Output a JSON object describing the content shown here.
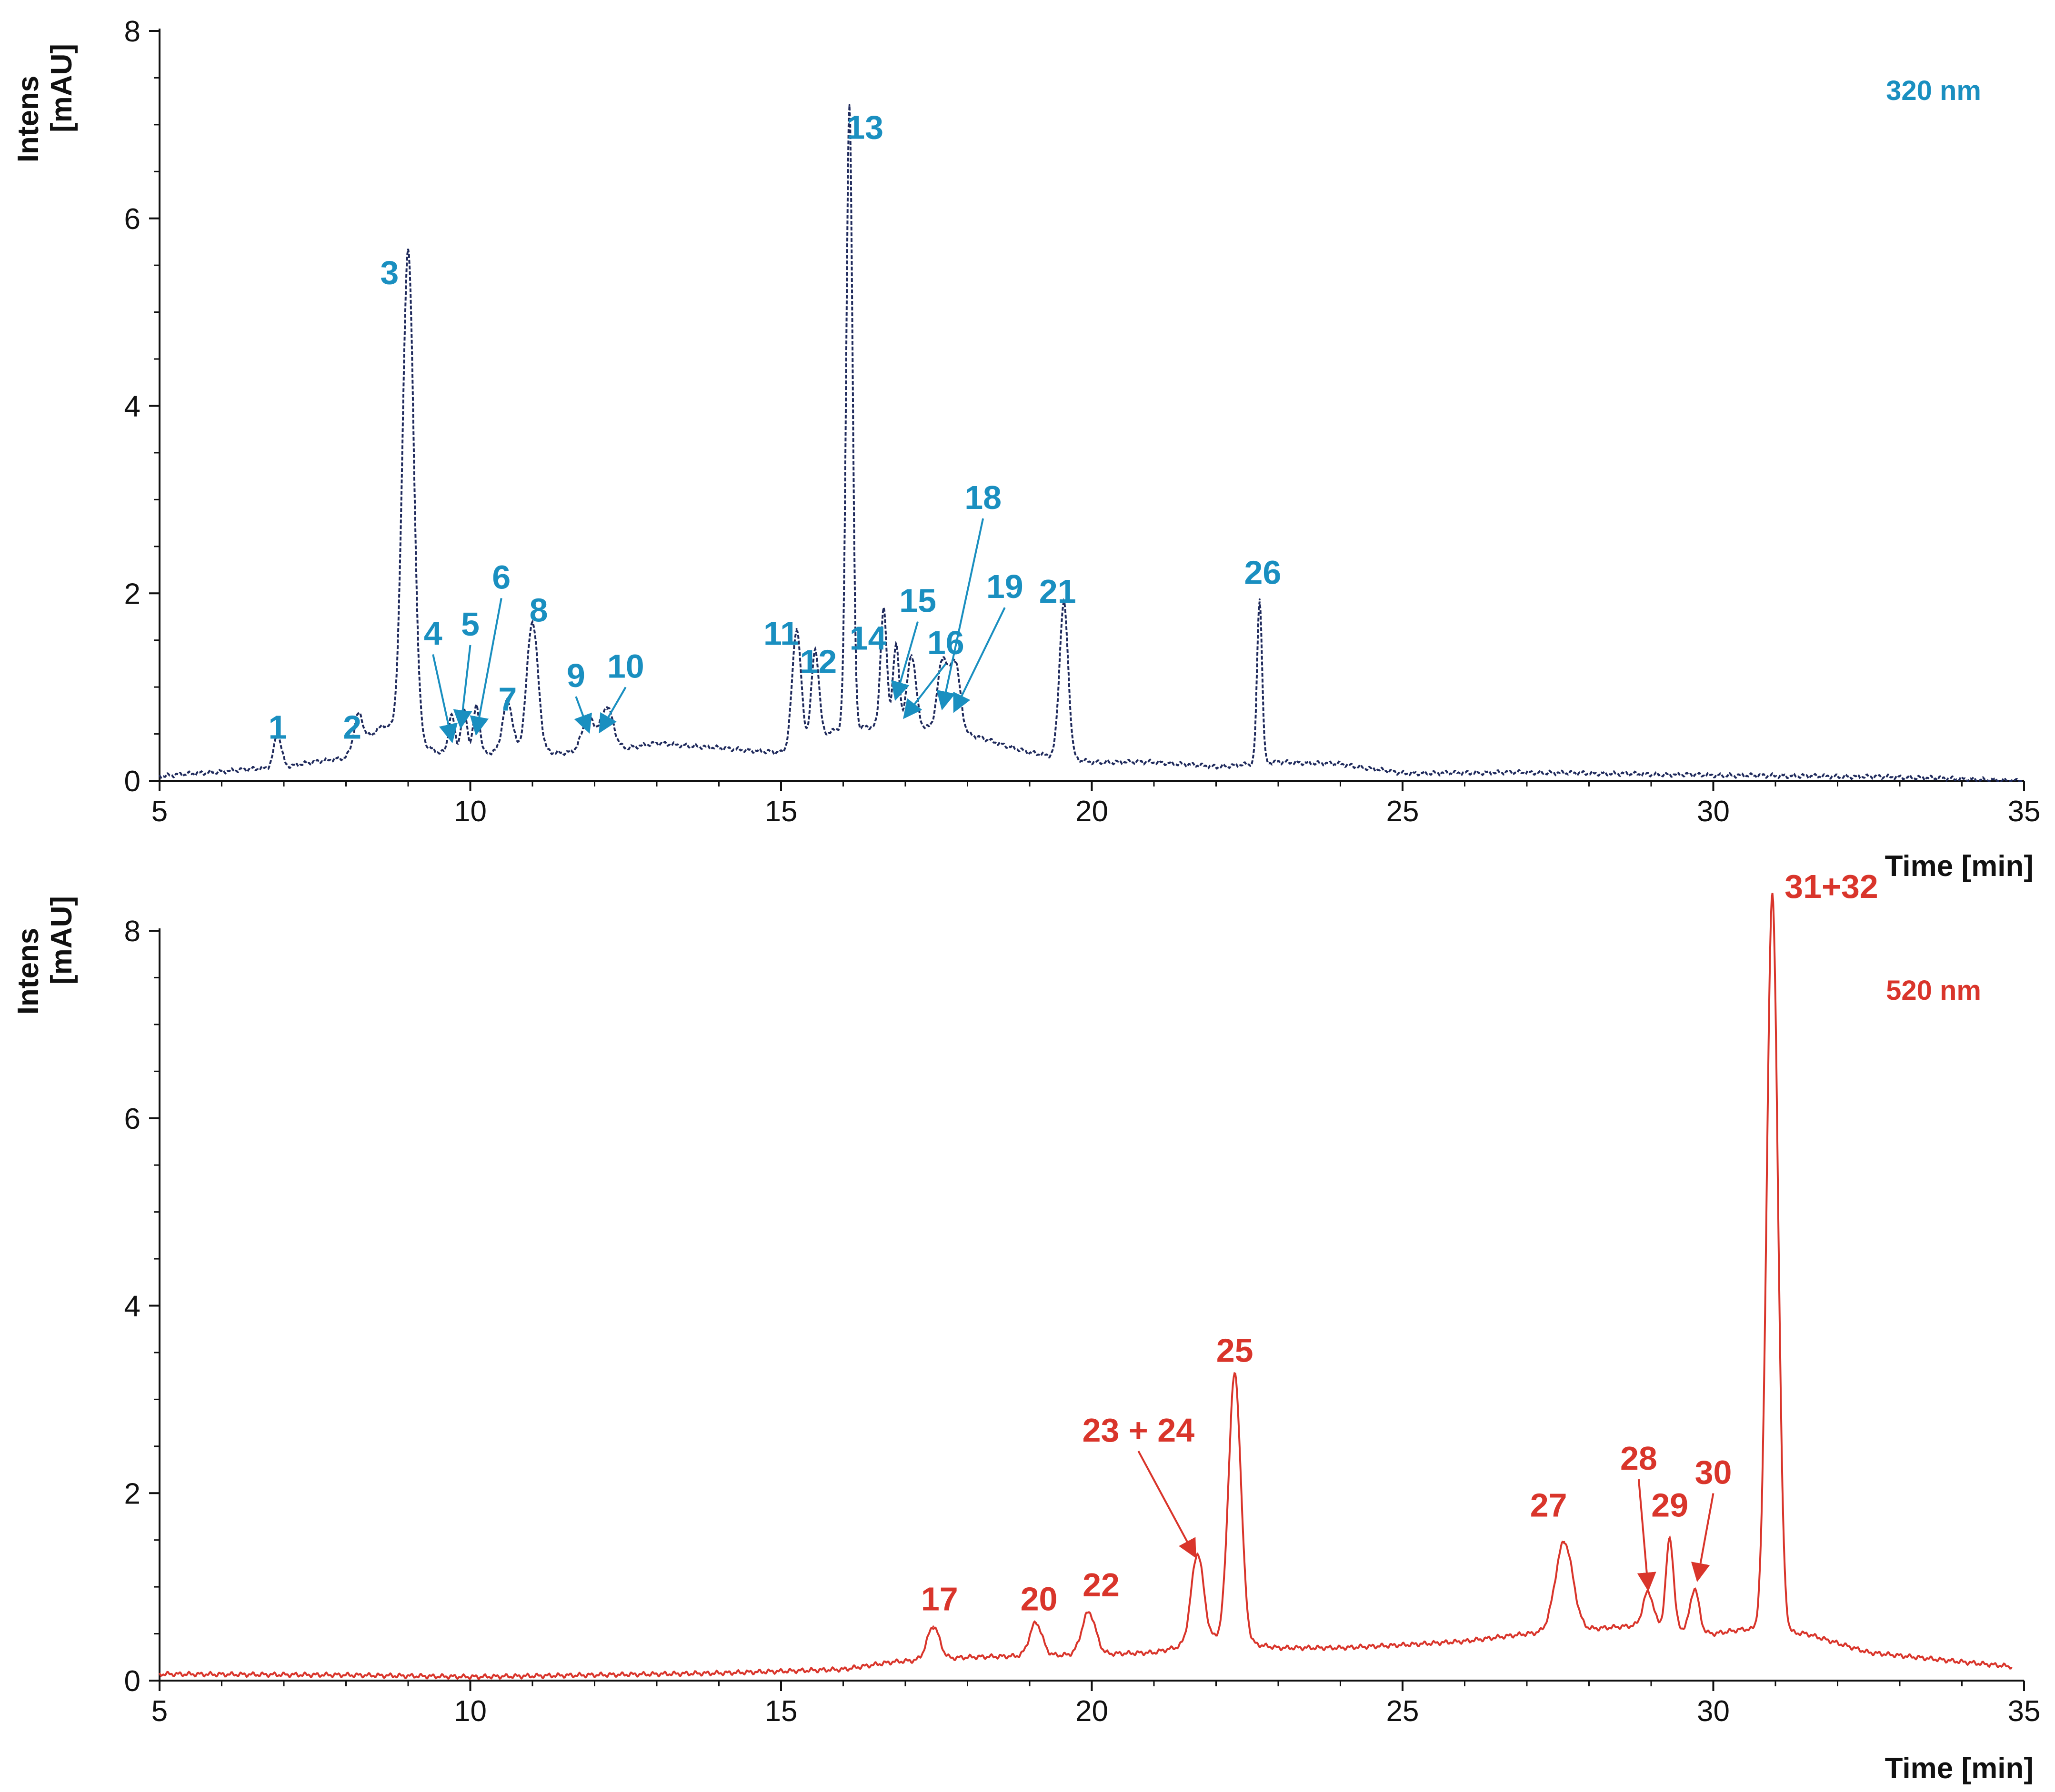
{
  "chart_data": [
    {
      "type": "line",
      "wavelength_label": "320 nm",
      "ylabel_line1": "Intens",
      "ylabel_line2": "[mAU]",
      "xlabel": "Time [min]",
      "xlim": [
        5,
        35
      ],
      "ylim": [
        0,
        8
      ],
      "xticks": [
        5,
        10,
        15,
        20,
        25,
        30,
        35
      ],
      "yticks": [
        0,
        2,
        4,
        6,
        8
      ],
      "color": "#1f2a5c",
      "label_color": "#1a8fc0",
      "line_style": "dashed",
      "baseline": [
        [
          5,
          0.05
        ],
        [
          6,
          0.1
        ],
        [
          7,
          0.15
        ],
        [
          8,
          0.25
        ],
        [
          8.6,
          0.6
        ],
        [
          9.5,
          0.3
        ],
        [
          10,
          0.3
        ],
        [
          11.5,
          0.3
        ],
        [
          12.5,
          0.35
        ],
        [
          13,
          0.4
        ],
        [
          14,
          0.35
        ],
        [
          15,
          0.3
        ],
        [
          15.9,
          0.55
        ],
        [
          17,
          0.6
        ],
        [
          18,
          0.5
        ],
        [
          19,
          0.3
        ],
        [
          20,
          0.2
        ],
        [
          21,
          0.2
        ],
        [
          22,
          0.15
        ],
        [
          23,
          0.2
        ],
        [
          24,
          0.18
        ],
        [
          25,
          0.08
        ],
        [
          27,
          0.09
        ],
        [
          30,
          0.06
        ],
        [
          33,
          0.04
        ],
        [
          35,
          0.0
        ]
      ],
      "peaks": [
        {
          "label": "1",
          "x": 6.9,
          "y": 0.35,
          "w": 0.06
        },
        {
          "label": "2",
          "x": 8.2,
          "y": 0.35,
          "w": 0.07
        },
        {
          "label": "3",
          "x": 9.0,
          "y": 5.2,
          "w": 0.09
        },
        {
          "label": "4",
          "x": 9.7,
          "y": 0.4,
          "w": 0.05
        },
        {
          "label": "5",
          "x": 9.9,
          "y": 0.45,
          "w": 0.05
        },
        {
          "label": "6",
          "x": 10.1,
          "y": 0.5,
          "w": 0.05
        },
        {
          "label": "7",
          "x": 10.6,
          "y": 0.55,
          "w": 0.08
        },
        {
          "label": "8",
          "x": 11.0,
          "y": 1.4,
          "w": 0.09
        },
        {
          "label": "9",
          "x": 11.9,
          "y": 0.35,
          "w": 0.1
        },
        {
          "label": "10",
          "x": 12.2,
          "y": 0.45,
          "w": 0.1
        },
        {
          "label": "11",
          "x": 15.25,
          "y": 1.25,
          "w": 0.07
        },
        {
          "label": "12",
          "x": 15.55,
          "y": 0.95,
          "w": 0.06
        },
        {
          "label": "13",
          "x": 16.1,
          "y": 6.65,
          "w": 0.05
        },
        {
          "label": "14",
          "x": 16.65,
          "y": 1.25,
          "w": 0.05
        },
        {
          "label": "15",
          "x": 16.85,
          "y": 0.85,
          "w": 0.05
        },
        {
          "label": "16",
          "x": 17.1,
          "y": 0.75,
          "w": 0.07
        },
        {
          "label": "18",
          "x": 17.6,
          "y": 0.75,
          "w": 0.08
        },
        {
          "label": "19",
          "x": 17.8,
          "y": 0.75,
          "w": 0.08
        },
        {
          "label": "21",
          "x": 19.55,
          "y": 1.65,
          "w": 0.07
        },
        {
          "label": "26",
          "x": 22.7,
          "y": 1.75,
          "w": 0.04
        }
      ],
      "annotations": [
        {
          "text": "1",
          "x": 6.9,
          "y": 0.45
        },
        {
          "text": "2",
          "x": 8.1,
          "y": 0.45
        },
        {
          "text": "3",
          "x": 8.7,
          "y": 5.3
        },
        {
          "text": "4",
          "x": 9.4,
          "y": 1.45,
          "arrow_to": [
            9.7,
            0.4
          ]
        },
        {
          "text": "5",
          "x": 10.0,
          "y": 1.55,
          "arrow_to": [
            9.85,
            0.55
          ]
        },
        {
          "text": "6",
          "x": 10.5,
          "y": 2.05,
          "arrow_to": [
            10.1,
            0.48
          ]
        },
        {
          "text": "7",
          "x": 10.6,
          "y": 0.75
        },
        {
          "text": "8",
          "x": 11.1,
          "y": 1.7
        },
        {
          "text": "9",
          "x": 11.7,
          "y": 1.0,
          "arrow_to": [
            11.9,
            0.5
          ]
        },
        {
          "text": "10",
          "x": 12.5,
          "y": 1.1,
          "arrow_to": [
            12.1,
            0.5
          ]
        },
        {
          "text": "11",
          "x": 15.0,
          "y": 1.45
        },
        {
          "text": "12",
          "x": 15.6,
          "y": 1.15
        },
        {
          "text": "13",
          "x": 16.35,
          "y": 6.85
        },
        {
          "text": "14",
          "x": 16.4,
          "y": 1.4
        },
        {
          "text": "15",
          "x": 17.2,
          "y": 1.8,
          "arrow_to": [
            16.85,
            0.85
          ]
        },
        {
          "text": "16",
          "x": 17.65,
          "y": 1.35,
          "arrow_to": [
            17.0,
            0.65
          ]
        },
        {
          "text": "18",
          "x": 18.25,
          "y": 2.9,
          "arrow_to": [
            17.6,
            0.75
          ]
        },
        {
          "text": "19",
          "x": 18.6,
          "y": 1.95,
          "arrow_to": [
            17.8,
            0.72
          ]
        },
        {
          "text": "21",
          "x": 19.45,
          "y": 1.9
        },
        {
          "text": "26",
          "x": 22.75,
          "y": 2.1
        }
      ]
    },
    {
      "type": "line",
      "wavelength_label": "520 nm",
      "ylabel_line1": "Intens",
      "ylabel_line2": "[mAU]",
      "xlabel": "Time [min]",
      "xlim": [
        5,
        35
      ],
      "ylim": [
        0,
        8
      ],
      "xticks": [
        5,
        10,
        15,
        20,
        25,
        30,
        35
      ],
      "yticks": [
        0,
        2,
        4,
        6,
        8
      ],
      "color": "#d9352b",
      "label_color": "#d9352b",
      "line_style": "solid",
      "baseline": [
        [
          5,
          0.07
        ],
        [
          8,
          0.06
        ],
        [
          10,
          0.04
        ],
        [
          12,
          0.06
        ],
        [
          14,
          0.08
        ],
        [
          16,
          0.12
        ],
        [
          16.8,
          0.2
        ],
        [
          18,
          0.25
        ],
        [
          20,
          0.28
        ],
        [
          21,
          0.3
        ],
        [
          22,
          0.45
        ],
        [
          23,
          0.35
        ],
        [
          24,
          0.35
        ],
        [
          25,
          0.38
        ],
        [
          26,
          0.42
        ],
        [
          27,
          0.5
        ],
        [
          28,
          0.55
        ],
        [
          29,
          0.6
        ],
        [
          30,
          0.5
        ],
        [
          30.5,
          0.55
        ],
        [
          31.5,
          0.5
        ],
        [
          32.5,
          0.3
        ],
        [
          34,
          0.2
        ],
        [
          34.8,
          0.15
        ]
      ],
      "peaks": [
        {
          "label": "17",
          "x": 17.45,
          "y": 0.35,
          "w": 0.1
        },
        {
          "label": "20",
          "x": 19.1,
          "y": 0.35,
          "w": 0.1
        },
        {
          "label": "22",
          "x": 19.95,
          "y": 0.45,
          "w": 0.11
        },
        {
          "label": "23 + 24",
          "x": 21.7,
          "y": 0.95,
          "w": 0.1
        },
        {
          "label": "25",
          "x": 22.3,
          "y": 2.85,
          "w": 0.1
        },
        {
          "label": "27",
          "x": 27.6,
          "y": 0.95,
          "w": 0.14
        },
        {
          "label": "28",
          "x": 28.95,
          "y": 0.35,
          "w": 0.08
        },
        {
          "label": "29",
          "x": 29.3,
          "y": 0.95,
          "w": 0.06
        },
        {
          "label": "30",
          "x": 29.7,
          "y": 0.45,
          "w": 0.07
        },
        {
          "label": "31+32",
          "x": 30.95,
          "y": 7.85,
          "w": 0.09
        }
      ],
      "annotations": [
        {
          "text": "17",
          "x": 17.55,
          "y": 0.75
        },
        {
          "text": "20",
          "x": 19.15,
          "y": 0.75
        },
        {
          "text": "22",
          "x": 20.15,
          "y": 0.9
        },
        {
          "text": "23 + 24",
          "x": 20.75,
          "y": 2.55,
          "arrow_to": [
            21.65,
            1.3
          ]
        },
        {
          "text": "25",
          "x": 22.3,
          "y": 3.4
        },
        {
          "text": "27",
          "x": 27.35,
          "y": 1.75
        },
        {
          "text": "28",
          "x": 28.8,
          "y": 2.25,
          "arrow_to": [
            28.95,
            0.95
          ]
        },
        {
          "text": "29",
          "x": 29.3,
          "y": 1.75
        },
        {
          "text": "30",
          "x": 30.0,
          "y": 2.1,
          "arrow_to": [
            29.75,
            1.05
          ]
        },
        {
          "text": "31+32",
          "x": 31.9,
          "y": 8.35
        }
      ]
    }
  ]
}
